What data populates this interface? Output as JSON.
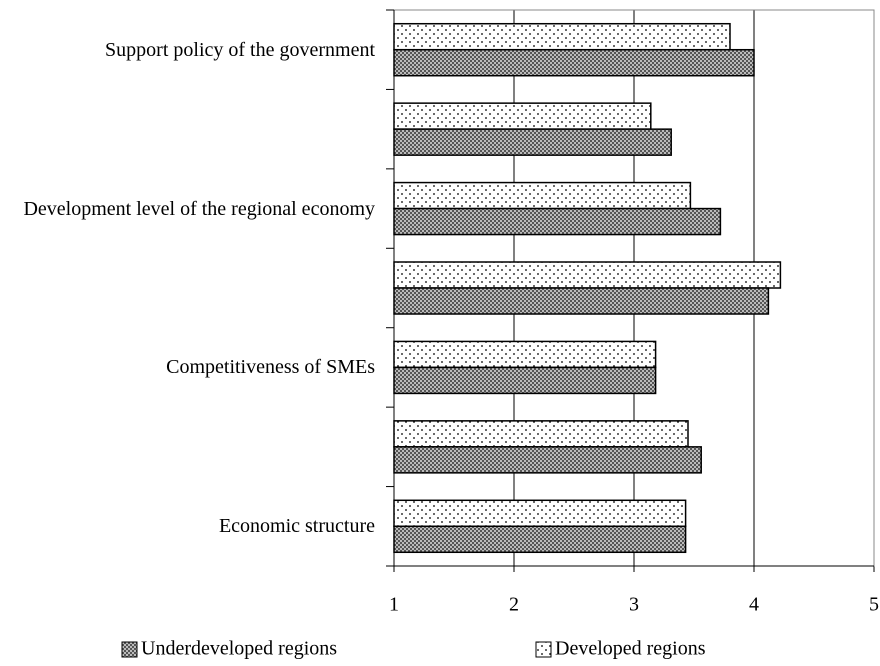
{
  "chart_data": {
    "type": "hbar",
    "categories": [
      "Support policy of the government",
      null,
      "Development level of the regional economy",
      null,
      "Competitiveness of SMEs",
      null,
      "Economic structure"
    ],
    "series": [
      {
        "name": "Developed regions",
        "color": "#ffffff",
        "pattern": "dots",
        "values": [
          3.8,
          3.14,
          3.47,
          4.22,
          3.18,
          3.45,
          3.43
        ]
      },
      {
        "name": "Underdeveloped regions",
        "color": "#888888",
        "pattern": "crosshatch",
        "values": [
          4.0,
          3.31,
          3.72,
          4.12,
          3.18,
          3.56,
          3.43
        ]
      }
    ],
    "xlim": [
      1,
      5
    ],
    "xticks": [
      1,
      2,
      3,
      4,
      5
    ],
    "grid": true,
    "legend": "bottom"
  }
}
